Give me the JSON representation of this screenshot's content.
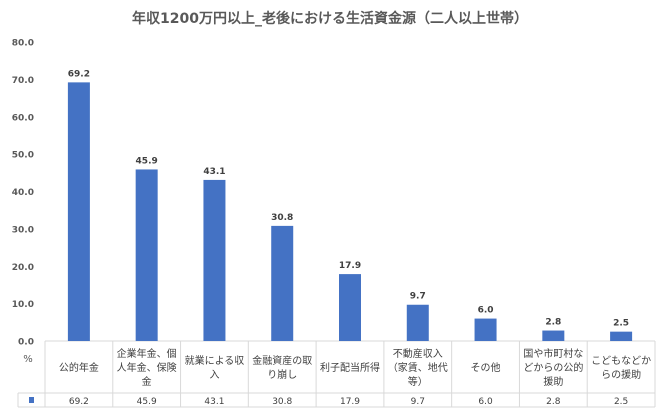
{
  "chart_data": {
    "type": "bar",
    "title": "年収1200万円以上_老後における生活資金源（二人以上世帯）",
    "ylabel": "%",
    "ylim": [
      0,
      80
    ],
    "yticks": [
      "0.0",
      "10.0",
      "20.0",
      "30.0",
      "40.0",
      "50.0",
      "60.0",
      "70.0",
      "80.0"
    ],
    "categories": [
      [
        "公的年金"
      ],
      [
        "企業年金、個",
        "人年金、保険",
        "金"
      ],
      [
        "就業による収",
        "入"
      ],
      [
        "金融資産の取",
        "り崩し"
      ],
      [
        "利子配当所得"
      ],
      [
        "不動産収入",
        "（家賃、地代",
        "等）"
      ],
      [
        "その他"
      ],
      [
        "国や市町村な",
        "どからの公的",
        "援助"
      ],
      [
        "こどもなどか",
        "らの援助"
      ]
    ],
    "values": [
      69.2,
      45.9,
      43.1,
      30.8,
      17.9,
      9.7,
      6.0,
      2.8,
      2.5
    ],
    "data_labels": [
      "69.2",
      "45.9",
      "43.1",
      "30.8",
      "17.9",
      "9.7",
      "6.0",
      "2.8",
      "2.5"
    ],
    "grid": false,
    "legend": "data-table",
    "color": "#4472C4"
  }
}
